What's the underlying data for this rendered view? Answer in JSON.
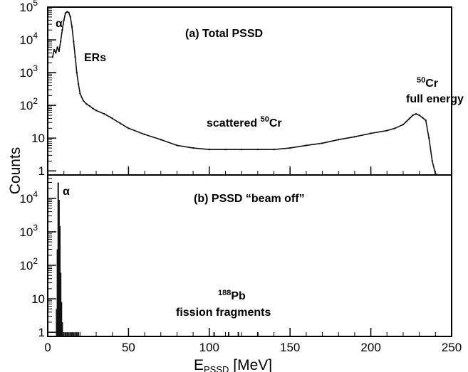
{
  "chart_data": [
    {
      "type": "histogram",
      "panel": "(a)",
      "title": "Total PSSD",
      "scale": "log",
      "xlim": [
        0,
        250
      ],
      "ylim": [
        0.75,
        100000
      ],
      "y_ticks": [
        {
          "value": 1,
          "label": "1"
        },
        {
          "value": 10,
          "label": "10"
        },
        {
          "value": 100,
          "label": "10",
          "exp": "2"
        },
        {
          "value": 1000,
          "label": "10",
          "exp": "3"
        },
        {
          "value": 10000,
          "label": "10",
          "exp": "4"
        },
        {
          "value": 100000,
          "label": "10",
          "exp": "5"
        }
      ],
      "series": [
        {
          "x": [
            3,
            4,
            5,
            6,
            7,
            8,
            9,
            10,
            11,
            12,
            13,
            14,
            15,
            16,
            17,
            18,
            19,
            20,
            22,
            24,
            26,
            28,
            30,
            35,
            40,
            45,
            50,
            60,
            70,
            80,
            90,
            100,
            110,
            120,
            130,
            140,
            150,
            160,
            170,
            180,
            190,
            200,
            210,
            215,
            220,
            222,
            224,
            226,
            228,
            230,
            232,
            234,
            236,
            238,
            240,
            242
          ],
          "values": [
            3000,
            5000,
            4000,
            6000,
            4500,
            9000,
            20000,
            40000,
            65000,
            72000,
            68000,
            50000,
            25000,
            9000,
            3000,
            1000,
            450,
            230,
            140,
            110,
            95,
            80,
            70,
            55,
            40,
            28,
            20,
            13,
            9,
            6,
            5,
            4.5,
            4.5,
            4.5,
            4.5,
            4.5,
            5,
            6,
            7,
            9,
            11,
            14,
            17,
            20,
            26,
            32,
            40,
            50,
            55,
            50,
            42,
            35,
            10,
            2,
            0.8,
            0.75
          ]
        }
      ],
      "annotations": [
        {
          "text": "α"
        },
        {
          "text": "ERs"
        },
        {
          "text": "scattered ",
          "sup": "50",
          "after": "Cr"
        },
        {
          "text": "Cr",
          "sup": "50"
        },
        {
          "text": "full energy"
        }
      ]
    },
    {
      "type": "histogram",
      "panel": "(b)",
      "title": "PSSD “beam off”",
      "scale": "log",
      "xlim": [
        0,
        250
      ],
      "ylim": [
        0.75,
        50000
      ],
      "y_ticks": [
        {
          "value": 1,
          "label": "1"
        },
        {
          "value": 10,
          "label": "10"
        },
        {
          "value": 100,
          "label": "10",
          "exp": "2"
        },
        {
          "value": 1000,
          "label": "10",
          "exp": "3"
        },
        {
          "value": 10000,
          "label": "10",
          "exp": "4"
        }
      ],
      "series": [
        {
          "x": [
            5.5,
            6,
            6.5,
            7,
            7.5,
            8,
            8.5,
            9,
            10,
            11,
            12,
            13,
            14,
            15,
            16,
            17,
            18,
            19,
            103,
            112,
            118,
            130
          ],
          "values": [
            5,
            300,
            30000,
            9000,
            1500,
            60,
            8,
            2,
            1,
            1,
            1,
            1,
            1,
            1,
            1,
            1,
            1,
            1,
            1,
            1,
            1,
            1
          ]
        }
      ],
      "annotations": [
        {
          "text": "α"
        },
        {
          "text": "Pb",
          "sup": "188"
        },
        {
          "text": "fission fragments"
        }
      ]
    }
  ],
  "axes": {
    "ylabel": "Counts",
    "xlabel_main": "E",
    "xlabel_sub": "PSSD",
    "xlabel_unit": " [MeV]",
    "x_ticks": [
      {
        "value": 0,
        "label": "0"
      },
      {
        "value": 50,
        "label": "50"
      },
      {
        "value": 100,
        "label": "100"
      },
      {
        "value": 150,
        "label": "150"
      },
      {
        "value": 200,
        "label": "200"
      },
      {
        "value": 250,
        "label": "250"
      }
    ]
  }
}
